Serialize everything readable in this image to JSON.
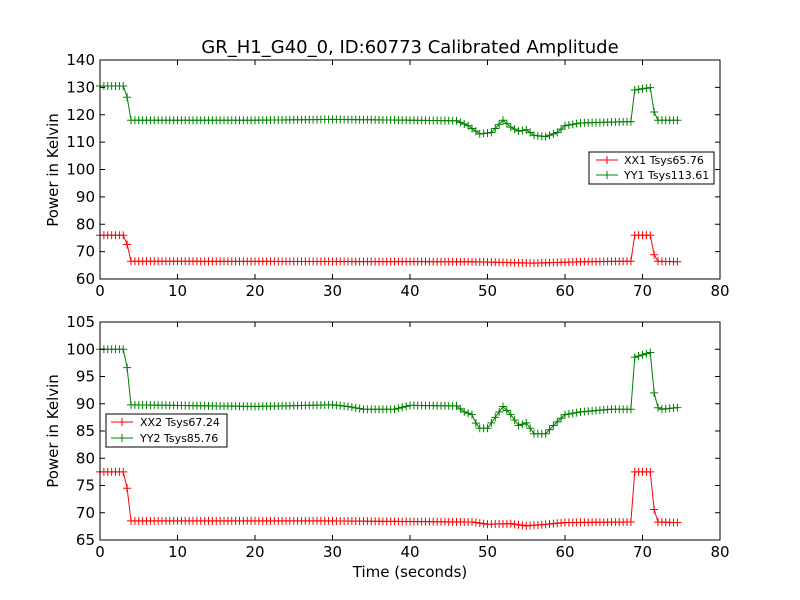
{
  "title": "GR_H1_G40_0, ID:60773 Calibrated Amplitude",
  "colors": {
    "red": "#ff0000",
    "green": "#008000"
  },
  "chart_data": [
    {
      "type": "line",
      "ylabel": "Power in Kelvin",
      "xlabel": "",
      "xlim": [
        0,
        80
      ],
      "ylim": [
        60,
        140
      ],
      "xticks": [
        "0",
        "10",
        "20",
        "30",
        "40",
        "50",
        "60",
        "70",
        "80"
      ],
      "yticks": [
        "60",
        "70",
        "80",
        "90",
        "100",
        "110",
        "120",
        "130",
        "140"
      ],
      "legend_position": "center-right",
      "series": [
        {
          "name": "XX1 Tsys65.76",
          "color": "#ff0000",
          "keypoints": [
            [
              0,
              76
            ],
            [
              3.2,
              76
            ],
            [
              3.6,
              71.5
            ],
            [
              4.0,
              66.5
            ],
            [
              48,
              66.3
            ],
            [
              56,
              65.8
            ],
            [
              62,
              66.3
            ],
            [
              68.5,
              66.5
            ],
            [
              68.9,
              76
            ],
            [
              71.2,
              76
            ],
            [
              71.6,
              66.5
            ],
            [
              74.5,
              66.3
            ]
          ]
        },
        {
          "name": "YY1 Tsys113.61",
          "color": "#008000",
          "keypoints": [
            [
              0,
              130.5
            ],
            [
              3.2,
              130.5
            ],
            [
              3.6,
              125
            ],
            [
              4.0,
              118
            ],
            [
              20,
              118
            ],
            [
              30,
              118.3
            ],
            [
              40,
              118
            ],
            [
              46,
              117.8
            ],
            [
              47.5,
              116
            ],
            [
              49,
              113
            ],
            [
              50.5,
              113.5
            ],
            [
              52,
              118
            ],
            [
              53,
              115.5
            ],
            [
              54,
              114
            ],
            [
              55,
              114.5
            ],
            [
              56,
              112.5
            ],
            [
              57.5,
              112
            ],
            [
              59,
              113.5
            ],
            [
              60,
              116
            ],
            [
              62,
              117
            ],
            [
              68.5,
              117.5
            ],
            [
              68.9,
              129
            ],
            [
              71.2,
              130
            ],
            [
              71.6,
              118
            ],
            [
              74.5,
              118
            ]
          ]
        }
      ]
    },
    {
      "type": "line",
      "ylabel": "Power in Kelvin",
      "xlabel": "Time (seconds)",
      "xlim": [
        0,
        80
      ],
      "ylim": [
        65,
        105
      ],
      "xticks": [
        "0",
        "10",
        "20",
        "30",
        "40",
        "50",
        "60",
        "70",
        "80"
      ],
      "yticks": [
        "65",
        "70",
        "75",
        "80",
        "85",
        "90",
        "95",
        "100",
        "105"
      ],
      "legend_position": "center-left",
      "series": [
        {
          "name": "XX2 Tsys67.24",
          "color": "#ff0000",
          "keypoints": [
            [
              0,
              77.5
            ],
            [
              3.2,
              77.5
            ],
            [
              3.6,
              73.5
            ],
            [
              4.0,
              68.5
            ],
            [
              30,
              68.5
            ],
            [
              48,
              68.3
            ],
            [
              50,
              67.9
            ],
            [
              53,
              68
            ],
            [
              55,
              67.6
            ],
            [
              57,
              67.8
            ],
            [
              60,
              68.2
            ],
            [
              68.5,
              68.3
            ],
            [
              68.9,
              77.5
            ],
            [
              71.2,
              77.5
            ],
            [
              71.6,
              68.3
            ],
            [
              74.5,
              68.2
            ]
          ]
        },
        {
          "name": "YY2 Tsys85.76",
          "color": "#008000",
          "keypoints": [
            [
              0,
              100
            ],
            [
              3.2,
              100
            ],
            [
              3.6,
              95.5
            ],
            [
              4.0,
              89.8
            ],
            [
              20,
              89.5
            ],
            [
              30,
              89.8
            ],
            [
              32,
              89.5
            ],
            [
              34,
              89
            ],
            [
              38,
              89
            ],
            [
              40,
              89.7
            ],
            [
              46,
              89.6
            ],
            [
              47,
              88.5
            ],
            [
              48,
              88
            ],
            [
              48.8,
              85.5
            ],
            [
              50,
              85.5
            ],
            [
              51,
              87.5
            ],
            [
              52,
              89.5
            ],
            [
              53,
              88
            ],
            [
              54,
              86
            ],
            [
              55,
              86.5
            ],
            [
              56,
              84.5
            ],
            [
              57.5,
              84.5
            ],
            [
              58.5,
              86
            ],
            [
              60,
              88
            ],
            [
              62,
              88.5
            ],
            [
              66,
              89
            ],
            [
              68.5,
              89
            ],
            [
              68.9,
              98.5
            ],
            [
              71.2,
              99.5
            ],
            [
              71.6,
              89.5
            ],
            [
              72.5,
              89
            ],
            [
              74.5,
              89.3
            ]
          ]
        }
      ]
    }
  ]
}
